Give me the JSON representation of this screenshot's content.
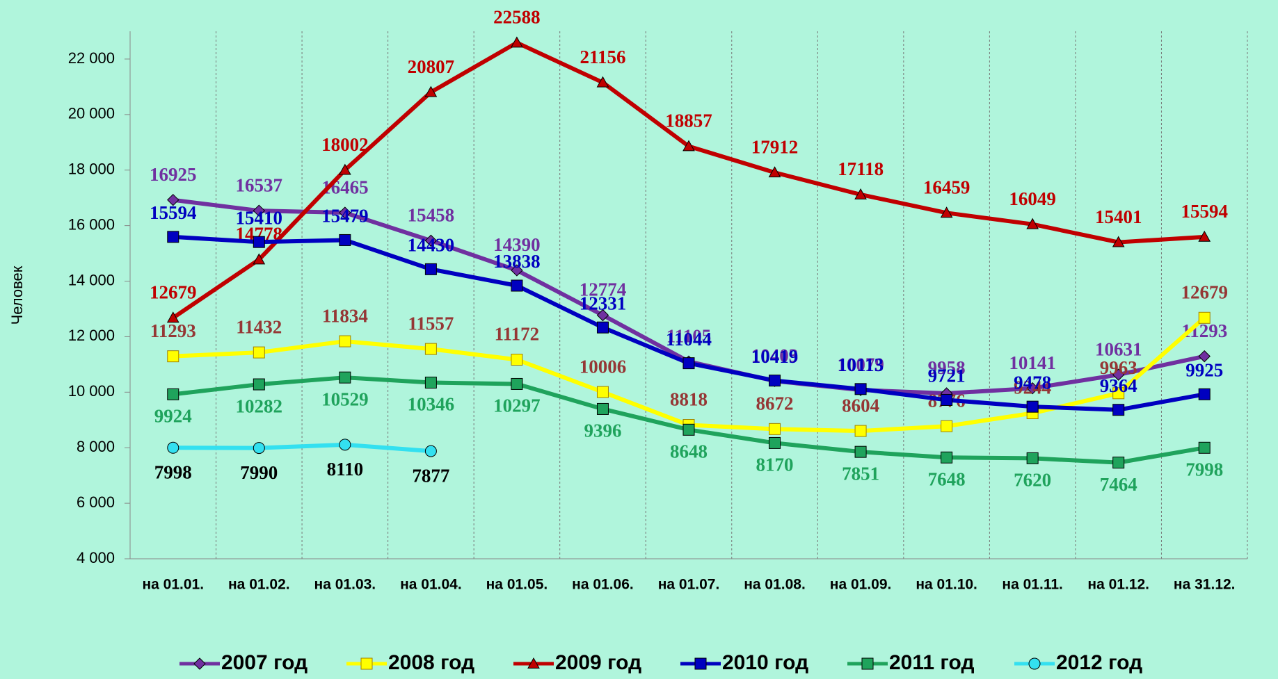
{
  "chart_data": {
    "type": "line",
    "y_label": "Человек",
    "categories": [
      "на 01.01.",
      "на 01.02.",
      "на 01.03.",
      "на 01.04.",
      "на 01.05.",
      "на 01.06.",
      "на 01.07.",
      "на 01.08.",
      "на 01.09.",
      "на 01.10.",
      "на 01.11.",
      "на 01.12.",
      "на 31.12."
    ],
    "series": [
      {
        "name": "2007 год",
        "color": "#7030a0",
        "label_color": "#7030a0",
        "marker": "diamond",
        "values": [
          16925,
          16537,
          16465,
          15458,
          14390,
          12774,
          11105,
          10403,
          10079,
          9958,
          10141,
          10631,
          11293
        ]
      },
      {
        "name": "2008 год",
        "color": "#ffff00",
        "label_color": "#953735",
        "marker": "square",
        "values": [
          11293,
          11432,
          11834,
          11557,
          11172,
          10006,
          8818,
          8672,
          8604,
          8776,
          9244,
          9963,
          12679
        ]
      },
      {
        "name": "2009 год",
        "color": "#c00000",
        "label_color": "#c00000",
        "marker": "triangle",
        "values": [
          12679,
          14778,
          18002,
          20807,
          22588,
          21156,
          18857,
          17912,
          17118,
          16459,
          16049,
          15401,
          15594
        ]
      },
      {
        "name": "2010 год",
        "color": "#0000c0",
        "label_color": "#0000c0",
        "marker": "square",
        "values": [
          15594,
          15410,
          15479,
          14430,
          13838,
          12331,
          11044,
          10419,
          10113,
          9721,
          9478,
          9364,
          9925
        ]
      },
      {
        "name": "2011 год",
        "color": "#1fa35c",
        "label_color": "#1fa35c",
        "marker": "square",
        "values": [
          9924,
          10282,
          10529,
          10346,
          10297,
          9396,
          8648,
          8170,
          7851,
          7648,
          7620,
          7464,
          7998
        ]
      },
      {
        "name": "2012 год",
        "color": "#33e0f0",
        "label_color": "#000000",
        "marker": "circle",
        "values": [
          7998,
          7990,
          8110,
          7877,
          null,
          null,
          null,
          null,
          null,
          null,
          null,
          null,
          null
        ]
      }
    ],
    "ylim": [
      4000,
      23000
    ],
    "yticks": [
      {
        "value": 4000,
        "label": "4 000"
      },
      {
        "value": 6000,
        "label": "6 000"
      },
      {
        "value": 8000,
        "label": "8 000"
      },
      {
        "value": 10000,
        "label": "10 000"
      },
      {
        "value": 12000,
        "label": "12 000"
      },
      {
        "value": 14000,
        "label": "14 000"
      },
      {
        "value": 16000,
        "label": "16 000"
      },
      {
        "value": 18000,
        "label": "18 000"
      },
      {
        "value": 20000,
        "label": "20 000"
      },
      {
        "value": 22000,
        "label": "22 000"
      }
    ],
    "grid": "vertical-dashed",
    "legend": "bottom"
  }
}
